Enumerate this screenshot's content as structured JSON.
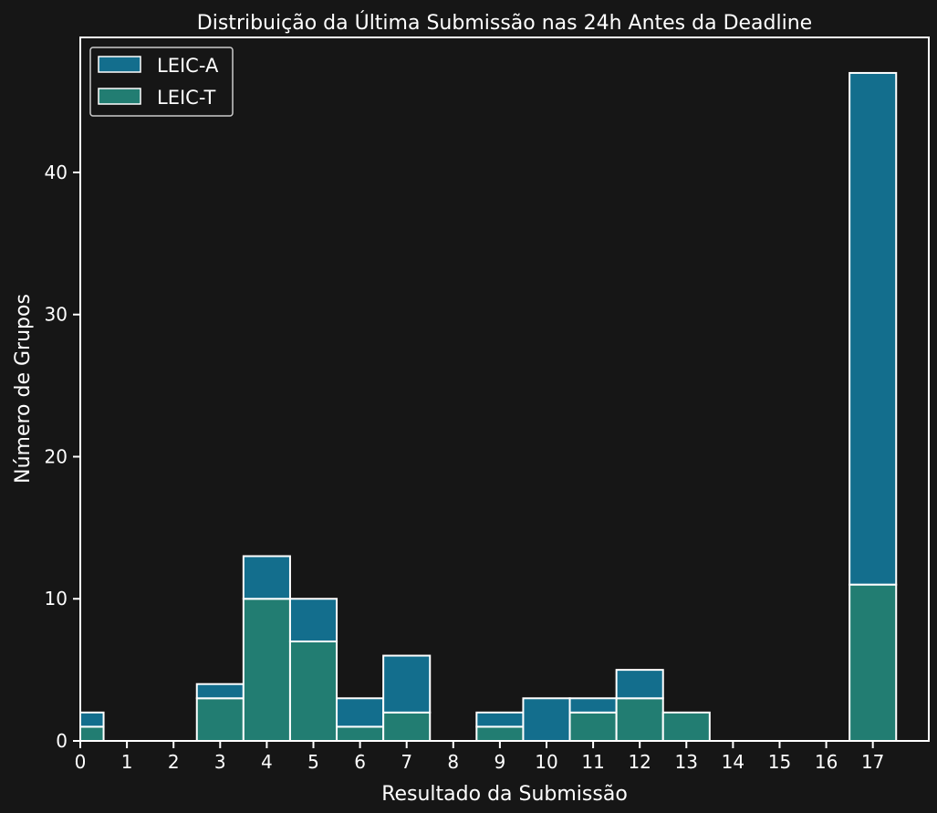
{
  "chart_data": {
    "type": "bar",
    "stacked": true,
    "title": "Distribuição da Última Submissão nas 24h Antes da Deadline",
    "xlabel": "Resultado da Submissão",
    "ylabel": "Número de Grupos",
    "categories": [
      0,
      1,
      2,
      3,
      4,
      5,
      6,
      7,
      8,
      9,
      10,
      11,
      12,
      13,
      14,
      15,
      16,
      17
    ],
    "xticks": [
      "0",
      "1",
      "2",
      "3",
      "4",
      "5",
      "6",
      "7",
      "8",
      "9",
      "10",
      "11",
      "12",
      "13",
      "14",
      "15",
      "16",
      "17"
    ],
    "yticks": [
      "0",
      "10",
      "20",
      "30",
      "40"
    ],
    "ylim": [
      0,
      49.5
    ],
    "grid": false,
    "legend_position": "top-left",
    "series": [
      {
        "name": "LEIC-A",
        "color": "#136e8d",
        "values": [
          1,
          0,
          0,
          1,
          3,
          3,
          2,
          4,
          0,
          1,
          3,
          1,
          2,
          0,
          0,
          0,
          0,
          36
        ]
      },
      {
        "name": "LEIC-T",
        "color": "#227d72",
        "values": [
          1,
          0,
          0,
          3,
          10,
          7,
          1,
          2,
          0,
          1,
          0,
          2,
          3,
          2,
          0,
          0,
          0,
          11
        ]
      }
    ],
    "colors": {
      "background": "#161616",
      "foreground": "#ffffff"
    }
  }
}
